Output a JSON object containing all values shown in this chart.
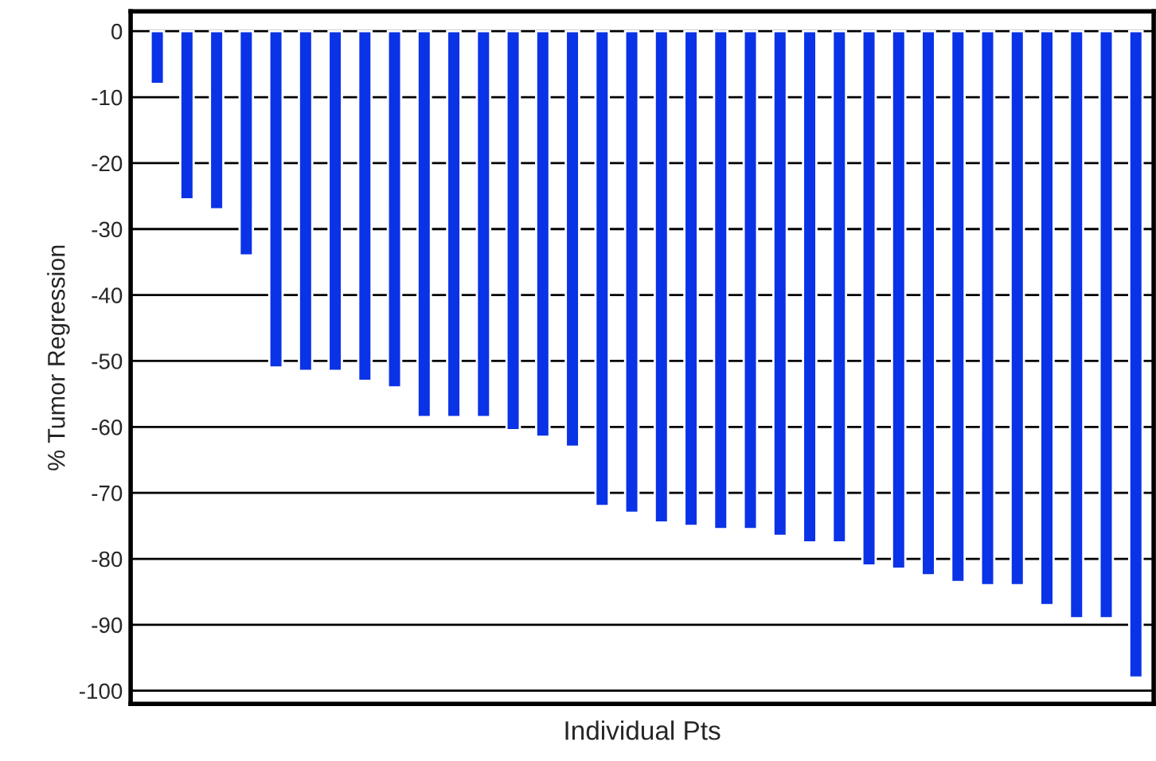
{
  "chart_data": {
    "type": "bar",
    "xlabel": "Individual Pts",
    "ylabel": "% Tumor Regression",
    "categories": [
      null,
      null,
      null,
      null,
      null,
      null,
      null,
      null,
      null,
      null,
      null,
      null,
      null,
      null,
      null,
      null,
      null,
      null,
      null,
      null,
      null,
      null,
      null,
      null,
      null,
      null,
      null,
      null,
      null,
      null,
      null,
      null,
      null,
      null
    ],
    "values": [
      -8,
      -25.5,
      -27,
      -34,
      -51,
      -51.5,
      -51.5,
      -53,
      -54,
      -58.5,
      -58.5,
      -58.5,
      -60.5,
      -61.5,
      -63,
      -72,
      -73,
      -74.5,
      -75,
      -75.5,
      -75.5,
      -76.5,
      -77.5,
      -77.5,
      -81,
      -81.5,
      -82.5,
      -83.5,
      -84,
      -84,
      -87,
      -89,
      -89,
      -98
    ],
    "color": "#0a32e6",
    "ylim": [
      -102,
      3
    ],
    "yticks": [
      0,
      -10,
      -20,
      -30,
      -40,
      -50,
      -60,
      -70,
      -80,
      -90,
      -100
    ],
    "grid": "y"
  }
}
